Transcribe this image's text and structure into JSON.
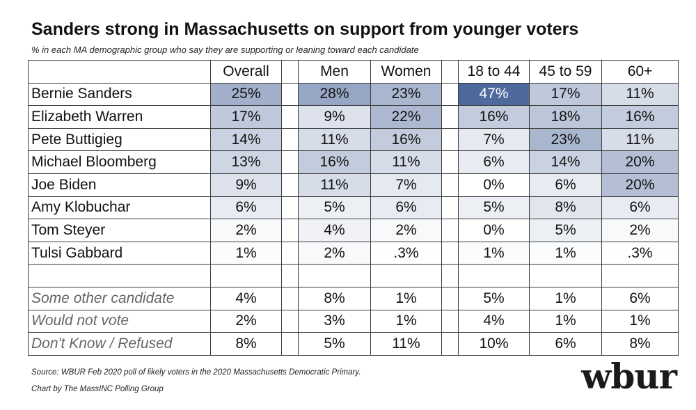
{
  "chart_data": {
    "type": "table",
    "title": "Sanders strong in Massachusetts on support from younger voters",
    "subtitle": "% in each MA demographic group who say they are supporting or leaning toward each candidate",
    "columns": [
      "Overall",
      "Men",
      "Women",
      "18 to 44",
      "45 to 59",
      "60+"
    ],
    "rows": [
      {
        "label": "Bernie Sanders",
        "values": [
          "25%",
          "28%",
          "23%",
          "47%",
          "17%",
          "11%"
        ],
        "numeric": [
          25,
          28,
          23,
          47,
          17,
          11
        ]
      },
      {
        "label": "Elizabeth Warren",
        "values": [
          "17%",
          "9%",
          "22%",
          "16%",
          "18%",
          "16%"
        ],
        "numeric": [
          17,
          9,
          22,
          16,
          18,
          16
        ]
      },
      {
        "label": "Pete Buttigieg",
        "values": [
          "14%",
          "11%",
          "16%",
          "7%",
          "23%",
          "11%"
        ],
        "numeric": [
          14,
          11,
          16,
          7,
          23,
          11
        ]
      },
      {
        "label": "Michael Bloomberg",
        "values": [
          "13%",
          "16%",
          "11%",
          "6%",
          "14%",
          "20%"
        ],
        "numeric": [
          13,
          16,
          11,
          6,
          14,
          20
        ]
      },
      {
        "label": "Joe Biden",
        "values": [
          "9%",
          "11%",
          "7%",
          "0%",
          "6%",
          "20%"
        ],
        "numeric": [
          9,
          11,
          7,
          0,
          6,
          20
        ]
      },
      {
        "label": "Amy Klobuchar",
        "values": [
          "6%",
          "5%",
          "6%",
          "5%",
          "8%",
          "6%"
        ],
        "numeric": [
          6,
          5,
          6,
          5,
          8,
          6
        ]
      },
      {
        "label": "Tom Steyer",
        "values": [
          "2%",
          "4%",
          "2%",
          "0%",
          "5%",
          "2%"
        ],
        "numeric": [
          2,
          4,
          2,
          0,
          5,
          2
        ]
      },
      {
        "label": "Tulsi Gabbard",
        "values": [
          "1%",
          "2%",
          ".3%",
          "1%",
          "1%",
          ".3%"
        ],
        "numeric": [
          1,
          2,
          0.3,
          1,
          1,
          0.3
        ]
      }
    ],
    "other_rows": [
      {
        "label": "Some other candidate",
        "values": [
          "4%",
          "8%",
          "1%",
          "5%",
          "1%",
          "6%"
        ]
      },
      {
        "label": "Would not vote",
        "values": [
          "2%",
          "3%",
          "1%",
          "4%",
          "1%",
          "1%"
        ]
      },
      {
        "label": "Don't Know / Refused",
        "values": [
          "8%",
          "5%",
          "11%",
          "10%",
          "6%",
          "8%"
        ]
      }
    ],
    "shading": {
      "color_low": "#ffffff",
      "color_high": "#2f4f8a",
      "scale_max": 47,
      "applies_to": "candidate rows"
    }
  },
  "footer": {
    "source": "Source: WBUR Feb 2020 poll of likely voters in the 2020 Massachusetts Democratic Primary.",
    "credit": "Chart by The MassINC Polling Group",
    "logo": "wbur"
  }
}
